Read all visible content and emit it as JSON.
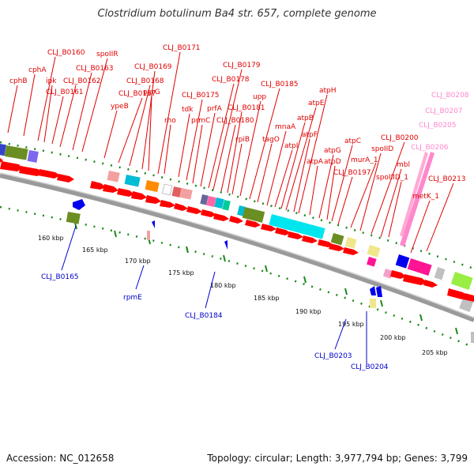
{
  "title": "Clostridium botulinum Ba4 str. 657, complete genome",
  "footer": {
    "accession": "Accession: NC_012658",
    "topology": "Topology: circular; Length: 3,977,794 bp; Genes: 3,799"
  },
  "colors": {
    "label_red": "#e00000",
    "label_blue": "#0000cc",
    "label_pink": "#ff88cc",
    "ruler_green": "#1a8a1a",
    "backbone": "#a0a0a0",
    "gene_red": "#ff0000"
  },
  "ruler_ticks": [
    "160 kbp",
    "165 kbp",
    "170 kbp",
    "175 kbp",
    "180 kbp",
    "185 kbp",
    "190 kbp",
    "195 kbp",
    "200 kbp",
    "205 kbp"
  ],
  "top_labels": [
    "cphB",
    "cphA",
    "CLJ_B0160",
    "ipk",
    "CLJ_B0161",
    "CLJ_B0162",
    "CLJ_B0163",
    "spoIIR",
    "ypeB",
    "CLJ_B0167",
    "CLJ_B0168",
    "CLJ_B0169",
    "CLJ_B0171",
    "pyrG",
    "rho",
    "tdk",
    "CLJ_B0175",
    "prmC",
    "prfA",
    "CLJ_B0178",
    "CLJ_B0179",
    "CLJ_B0180",
    "CLJ_B0181",
    "rpiB",
    "upp",
    "CLJ_B0185",
    "tagO",
    "mnaA",
    "atpI",
    "atpB",
    "atpE",
    "atpF",
    "atpH",
    "atpA",
    "atpG",
    "atpD",
    "atpC",
    "CLJ_B0197",
    "murA_1",
    "spoIID",
    "CLJ_B0200",
    "mbl",
    "spoIIID_1",
    "metK_1",
    "CLJ_B0213"
  ],
  "pink_labels": [
    "CLJ_B0208",
    "CLJ_B0207",
    "CLJ_B0205",
    "CLJ_B0206"
  ],
  "bottom_labels": [
    "CLJ_B0165",
    "rpmE",
    "CLJ_B0184",
    "CLJ_B0203",
    "CLJ_B0204"
  ]
}
